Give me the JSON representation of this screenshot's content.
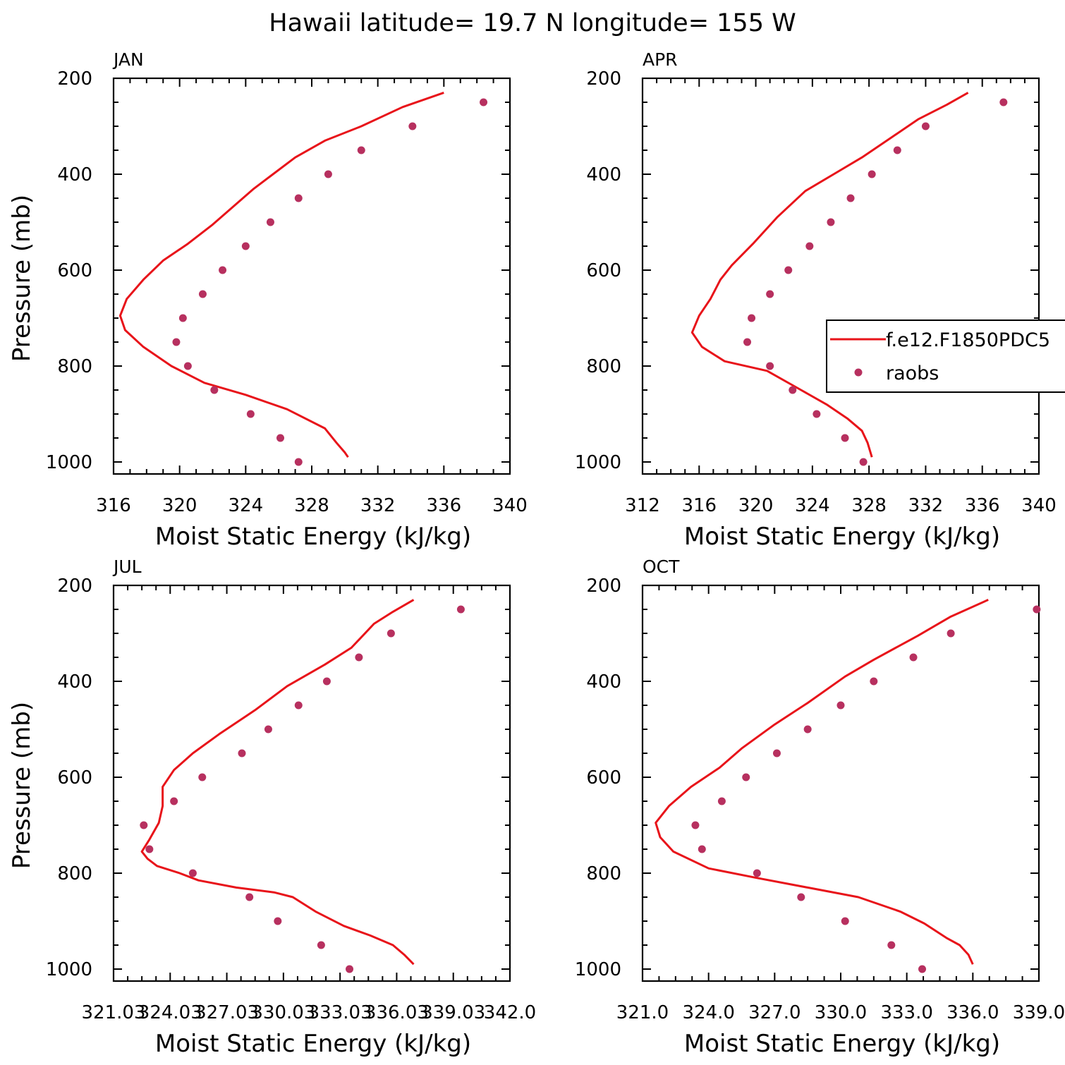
{
  "figure": {
    "title": "Hawaii  latitude= 19.7 N longitude= 155 W"
  },
  "chart_data": [
    {
      "type": "line",
      "panel_label": "JAN",
      "xlabel": "Moist Static Energy (kJ/kg)",
      "ylabel": "Pressure (mb)",
      "xlim": [
        316,
        340
      ],
      "ylim": [
        200,
        1025
      ],
      "y_inverted": true,
      "xticks": [
        316,
        320,
        324,
        328,
        332,
        336,
        340
      ],
      "xtick_labels": [
        "316",
        "320",
        "324",
        "328",
        "332",
        "336",
        "340"
      ],
      "yticks": [
        200,
        400,
        600,
        800,
        1000
      ],
      "ytick_labels": [
        "200",
        "400",
        "600",
        "800",
        "1000"
      ],
      "series": [
        {
          "name": "f.e12.F1850PDC5",
          "kind": "line",
          "color": "#e8141a",
          "points": [
            [
              336.0,
              230
            ],
            [
              333.5,
              260
            ],
            [
              331.0,
              300
            ],
            [
              328.8,
              330
            ],
            [
              327.0,
              365
            ],
            [
              324.5,
              430
            ],
            [
              322.0,
              505
            ],
            [
              320.5,
              545
            ],
            [
              319.0,
              580
            ],
            [
              317.8,
              620
            ],
            [
              316.8,
              660
            ],
            [
              316.4,
              695
            ],
            [
              316.7,
              725
            ],
            [
              317.8,
              760
            ],
            [
              319.5,
              800
            ],
            [
              321.5,
              835
            ],
            [
              324.0,
              860
            ],
            [
              326.5,
              890
            ],
            [
              328.8,
              930
            ],
            [
              329.5,
              960
            ],
            [
              330.0,
              980
            ],
            [
              330.2,
              990
            ]
          ]
        },
        {
          "name": "raobs",
          "kind": "scatter",
          "color": "#b7305f",
          "points": [
            [
              338.4,
              250
            ],
            [
              334.1,
              300
            ],
            [
              331.0,
              350
            ],
            [
              329.0,
              400
            ],
            [
              327.2,
              450
            ],
            [
              325.5,
              500
            ],
            [
              324.0,
              550
            ],
            [
              322.6,
              600
            ],
            [
              321.4,
              650
            ],
            [
              320.2,
              700
            ],
            [
              319.8,
              750
            ],
            [
              320.5,
              800
            ],
            [
              322.1,
              850
            ],
            [
              324.3,
              900
            ],
            [
              326.1,
              950
            ],
            [
              327.2,
              1000
            ]
          ]
        }
      ]
    },
    {
      "type": "line",
      "panel_label": "APR",
      "xlabel": "Moist Static Energy (kJ/kg)",
      "ylabel": "",
      "xlim": [
        312,
        340
      ],
      "ylim": [
        200,
        1025
      ],
      "y_inverted": true,
      "xticks": [
        312,
        316,
        320,
        324,
        328,
        332,
        336,
        340
      ],
      "xtick_labels": [
        "312",
        "316",
        "320",
        "324",
        "328",
        "332",
        "336",
        "340"
      ],
      "yticks": [
        200,
        400,
        600,
        800,
        1000
      ],
      "ytick_labels": [
        "200",
        "400",
        "600",
        "800",
        "1000"
      ],
      "legend": {
        "placement": "right",
        "entries": [
          "f.e12.F1850PDC5",
          "raobs"
        ]
      },
      "series": [
        {
          "name": "f.e12.F1850PDC5",
          "kind": "line",
          "color": "#e8141a",
          "points": [
            [
              335.0,
              230
            ],
            [
              333.5,
              255
            ],
            [
              331.5,
              285
            ],
            [
              329.5,
              325
            ],
            [
              327.5,
              365
            ],
            [
              325.5,
              400
            ],
            [
              323.5,
              435
            ],
            [
              321.5,
              490
            ],
            [
              319.8,
              545
            ],
            [
              318.3,
              590
            ],
            [
              317.5,
              620
            ],
            [
              316.8,
              660
            ],
            [
              316.0,
              695
            ],
            [
              315.5,
              730
            ],
            [
              316.2,
              760
            ],
            [
              317.8,
              790
            ],
            [
              320.8,
              810
            ],
            [
              323.2,
              850
            ],
            [
              325.0,
              880
            ],
            [
              326.5,
              910
            ],
            [
              327.5,
              935
            ],
            [
              327.9,
              960
            ],
            [
              328.2,
              990
            ]
          ]
        },
        {
          "name": "raobs",
          "kind": "scatter",
          "color": "#b7305f",
          "points": [
            [
              337.5,
              250
            ],
            [
              332.0,
              300
            ],
            [
              330.0,
              350
            ],
            [
              328.2,
              400
            ],
            [
              326.7,
              450
            ],
            [
              325.3,
              500
            ],
            [
              323.8,
              550
            ],
            [
              322.3,
              600
            ],
            [
              321.0,
              650
            ],
            [
              319.7,
              700
            ],
            [
              319.4,
              750
            ],
            [
              321.0,
              800
            ],
            [
              322.6,
              850
            ],
            [
              324.3,
              900
            ],
            [
              326.3,
              950
            ],
            [
              327.6,
              1000
            ]
          ]
        }
      ]
    },
    {
      "type": "line",
      "panel_label": "JUL",
      "xlabel": "Moist Static Energy (kJ/kg)",
      "ylabel": "Pressure (mb)",
      "xlim": [
        321.0,
        342.0
      ],
      "ylim": [
        200,
        1025
      ],
      "y_inverted": true,
      "xticks": [
        321.0,
        324.0,
        327.0,
        330.0,
        333.0,
        336.0,
        339.0,
        342.0
      ],
      "xtick_labels": [
        "321.03",
        "324.03",
        "327.03",
        "330.03",
        "333.03",
        "336.03",
        "339.03",
        "342.0"
      ],
      "yticks": [
        200,
        400,
        600,
        800,
        1000
      ],
      "ytick_labels": [
        "200",
        "400",
        "600",
        "800",
        "1000"
      ],
      "series": [
        {
          "name": "f.e12.F1850PDC5",
          "kind": "line",
          "color": "#e8141a",
          "points": [
            [
              336.9,
              230
            ],
            [
              335.8,
              255
            ],
            [
              334.8,
              280
            ],
            [
              333.6,
              330
            ],
            [
              332.2,
              365
            ],
            [
              330.2,
              410
            ],
            [
              328.5,
              460
            ],
            [
              326.6,
              510
            ],
            [
              325.2,
              550
            ],
            [
              324.2,
              585
            ],
            [
              323.6,
              620
            ],
            [
              323.6,
              660
            ],
            [
              323.4,
              695
            ],
            [
              322.9,
              730
            ],
            [
              322.5,
              755
            ],
            [
              322.8,
              770
            ],
            [
              323.3,
              785
            ],
            [
              324.5,
              800
            ],
            [
              325.5,
              815
            ],
            [
              327.5,
              830
            ],
            [
              329.5,
              840
            ],
            [
              330.5,
              850
            ],
            [
              331.7,
              880
            ],
            [
              333.2,
              910
            ],
            [
              334.6,
              930
            ],
            [
              335.8,
              950
            ],
            [
              336.4,
              970
            ],
            [
              336.9,
              990
            ]
          ]
        },
        {
          "name": "raobs",
          "kind": "scatter",
          "color": "#b7305f",
          "points": [
            [
              339.4,
              250
            ],
            [
              335.7,
              300
            ],
            [
              334.0,
              350
            ],
            [
              332.3,
              400
            ],
            [
              330.8,
              450
            ],
            [
              329.2,
              500
            ],
            [
              327.8,
              550
            ],
            [
              325.7,
              600
            ],
            [
              324.2,
              650
            ],
            [
              322.6,
              700
            ],
            [
              322.9,
              750
            ],
            [
              325.2,
              800
            ],
            [
              328.2,
              850
            ],
            [
              329.7,
              900
            ],
            [
              332.0,
              950
            ],
            [
              333.5,
              1000
            ]
          ]
        }
      ]
    },
    {
      "type": "line",
      "panel_label": "OCT",
      "xlabel": "Moist Static Energy (kJ/kg)",
      "ylabel": "",
      "xlim": [
        321.0,
        339.0
      ],
      "ylim": [
        200,
        1025
      ],
      "y_inverted": true,
      "xticks": [
        321.0,
        324.0,
        327.0,
        330.0,
        333.0,
        336.0,
        339.0
      ],
      "xtick_labels": [
        "321.0",
        "324.0",
        "327.0",
        "330.0",
        "333.0",
        "336.0",
        "339.0"
      ],
      "yticks": [
        200,
        400,
        600,
        800,
        1000
      ],
      "ytick_labels": [
        "200",
        "400",
        "600",
        "800",
        "1000"
      ],
      "series": [
        {
          "name": "f.e12.F1850PDC5",
          "kind": "line",
          "color": "#e8141a",
          "points": [
            [
              336.7,
              230
            ],
            [
              335.0,
              265
            ],
            [
              333.5,
              305
            ],
            [
              331.5,
              355
            ],
            [
              330.2,
              390
            ],
            [
              328.5,
              445
            ],
            [
              327.0,
              490
            ],
            [
              325.5,
              540
            ],
            [
              324.5,
              580
            ],
            [
              323.2,
              620
            ],
            [
              322.2,
              660
            ],
            [
              321.6,
              695
            ],
            [
              321.8,
              725
            ],
            [
              322.4,
              755
            ],
            [
              324.0,
              790
            ],
            [
              326.2,
              810
            ],
            [
              328.5,
              830
            ],
            [
              330.8,
              850
            ],
            [
              332.7,
              880
            ],
            [
              333.8,
              905
            ],
            [
              334.8,
              935
            ],
            [
              335.4,
              950
            ],
            [
              335.8,
              970
            ],
            [
              336.0,
              990
            ]
          ]
        },
        {
          "name": "raobs",
          "kind": "scatter",
          "color": "#b7305f",
          "points": [
            [
              338.9,
              250
            ],
            [
              335.0,
              300
            ],
            [
              333.3,
              350
            ],
            [
              331.5,
              400
            ],
            [
              330.0,
              450
            ],
            [
              328.5,
              500
            ],
            [
              327.1,
              550
            ],
            [
              325.7,
              600
            ],
            [
              324.6,
              650
            ],
            [
              323.4,
              700
            ],
            [
              323.7,
              750
            ],
            [
              326.2,
              800
            ],
            [
              328.2,
              850
            ],
            [
              330.2,
              900
            ],
            [
              332.3,
              950
            ],
            [
              333.7,
              1000
            ]
          ]
        }
      ]
    }
  ]
}
